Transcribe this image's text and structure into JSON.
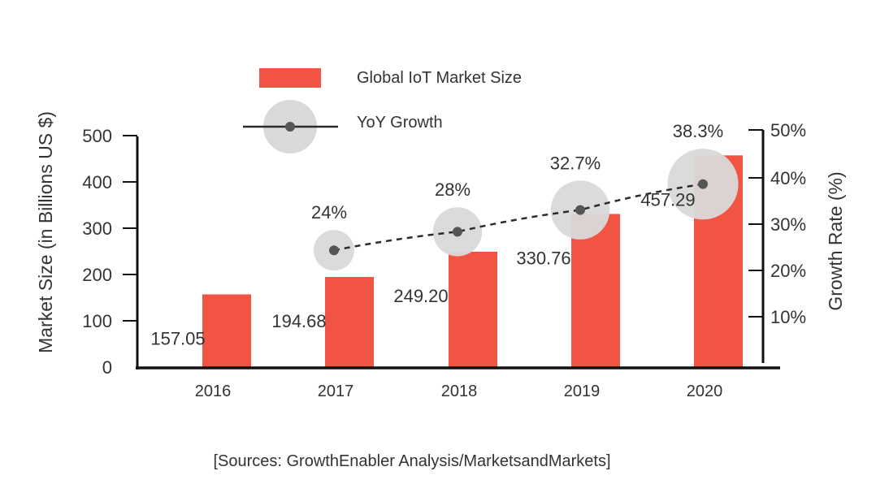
{
  "chart_data": {
    "type": "bar",
    "categories": [
      "2016",
      "2017",
      "2018",
      "2019",
      "2020"
    ],
    "series": [
      {
        "name": "Global IoT Market Size",
        "type": "bar",
        "axis": "left",
        "values": [
          157.05,
          194.68,
          249.2,
          330.76,
          457.29
        ],
        "labels": [
          "157.05",
          "194.68",
          "249.20",
          "330.76",
          "457.29"
        ]
      },
      {
        "name": "YoY Growth",
        "type": "line",
        "axis": "right",
        "values": [
          null,
          24,
          28,
          32.7,
          38.3
        ],
        "labels": [
          "",
          "24%",
          "28%",
          "32.7%",
          "38.3%"
        ]
      }
    ],
    "ylabel": "Market Size (in Billions US $)",
    "ylabel_right": "Growth Rate (%)",
    "ylim": [
      0,
      500
    ],
    "ylim_right": [
      0,
      50
    ],
    "yticks": [
      "0",
      "100",
      "200",
      "300",
      "400",
      "500"
    ],
    "yticks_right": [
      "10%",
      "20%",
      "30%",
      "40%",
      "50%"
    ],
    "legend_position": "top-left",
    "grid": false,
    "bar_color": "#f15442",
    "bubble_color": "#d9d9d9",
    "line_color": "#2b2b2b"
  },
  "source_note": "[Sources: GrowthEnabler Analysis/MarketsandMarkets]"
}
